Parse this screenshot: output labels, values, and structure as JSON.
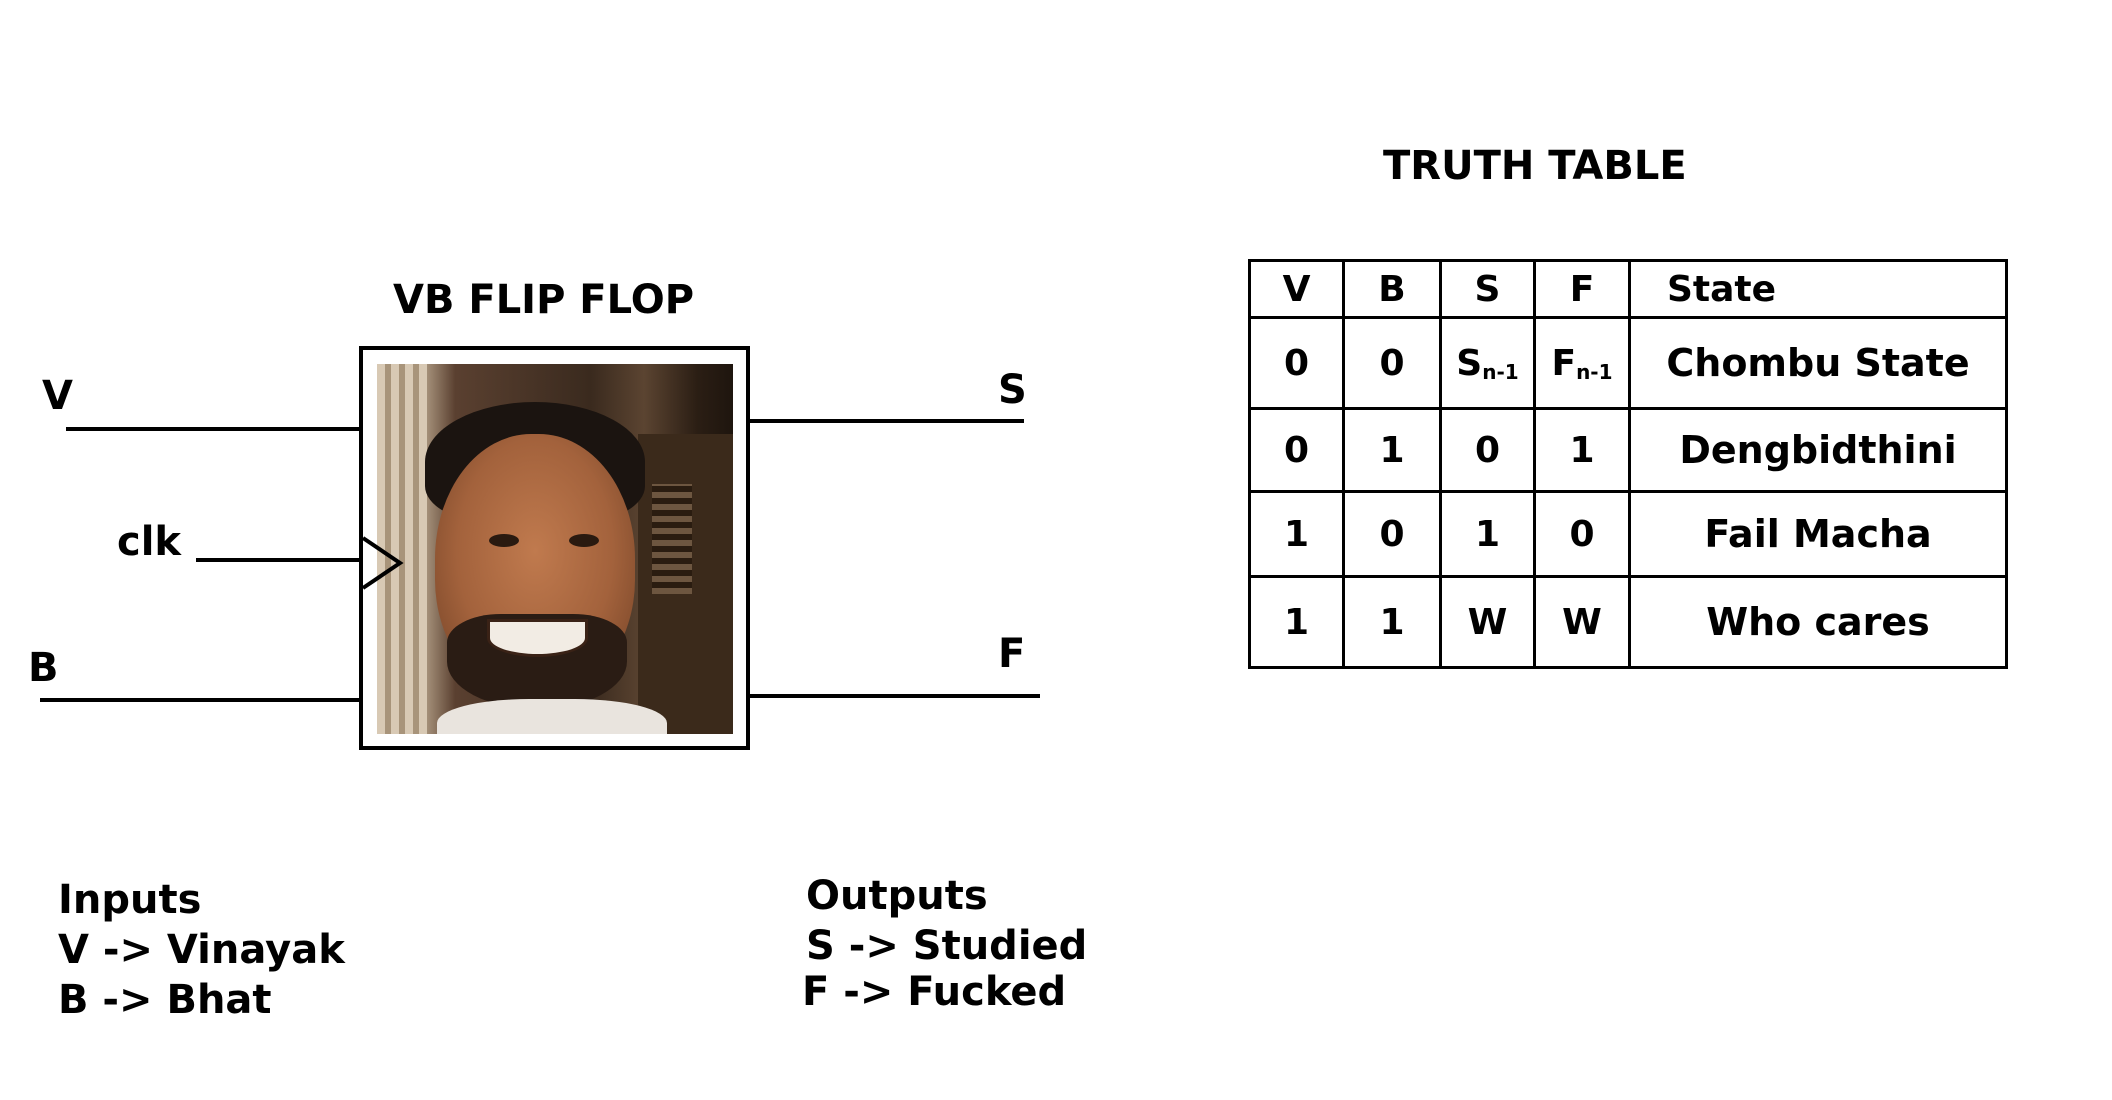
{
  "diagram": {
    "title": "VB FLIP FLOP",
    "inputs": [
      {
        "label": "V"
      },
      {
        "label": "clk"
      },
      {
        "label": "B"
      }
    ],
    "outputs": [
      {
        "label": "S"
      },
      {
        "label": "F"
      }
    ],
    "photo_description": "portrait-photo"
  },
  "truth_table": {
    "title": "TRUTH TABLE",
    "headers": [
      "V",
      "B",
      "S",
      "F",
      "State"
    ],
    "rows": [
      {
        "v": "0",
        "b": "0",
        "s_main": "S",
        "s_sub": "n-1",
        "f_main": "F",
        "f_sub": "n-1",
        "state": "Chombu State"
      },
      {
        "v": "0",
        "b": "1",
        "s": "0",
        "f": "1",
        "state": "Dengbidthini"
      },
      {
        "v": "1",
        "b": "0",
        "s": "1",
        "f": "0",
        "state": "Fail Macha"
      },
      {
        "v": "1",
        "b": "1",
        "s": "W",
        "f": "W",
        "state": "Who cares"
      }
    ]
  },
  "legend": {
    "inputs_heading": "Inputs",
    "inputs_lines": [
      "V -> Vinayak",
      "B -> Bhat"
    ],
    "outputs_heading": "Outputs",
    "outputs_lines": [
      "S -> Studied",
      "F -> Fucked"
    ]
  }
}
